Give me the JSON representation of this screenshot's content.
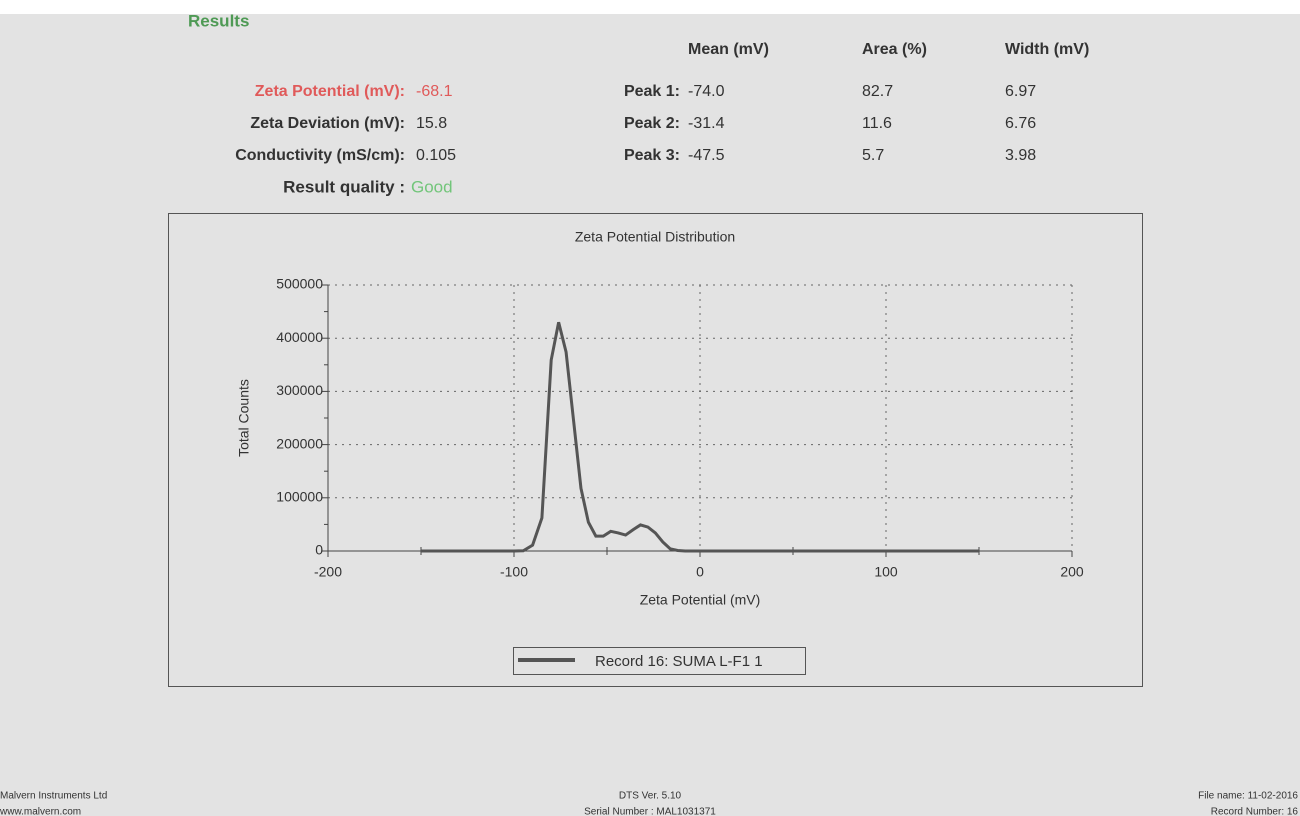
{
  "header": {
    "title": "Results",
    "columns": [
      "Mean (mV)",
      "Area (%)",
      "Width (mV)"
    ]
  },
  "results": [
    {
      "label": "Zeta Potential (mV):",
      "value": "-68.1"
    },
    {
      "label": "Zeta Deviation (mV):",
      "value": "15.8"
    },
    {
      "label": "Conductivity (mS/cm):",
      "value": "0.105"
    }
  ],
  "quality": {
    "label": "Result quality :",
    "value": "Good"
  },
  "peaks": [
    {
      "label": "Peak 1:",
      "mean": "-74.0",
      "area": "82.7",
      "width": "6.97"
    },
    {
      "label": "Peak 2:",
      "mean": "-31.4",
      "area": "11.6",
      "width": "6.76"
    },
    {
      "label": "Peak 3:",
      "mean": "-47.5",
      "area": "5.7",
      "width": "3.98"
    }
  ],
  "chart_data": {
    "type": "line",
    "title": "Zeta Potential Distribution",
    "x_label": "Zeta Potential (mV)",
    "y_label": "Total Counts",
    "x": [
      -150,
      -100,
      -95,
      -90,
      -85,
      -80,
      -76,
      -72,
      -68,
      -64,
      -60,
      -56,
      -52,
      -48,
      -44,
      -40,
      -36,
      -32,
      -28,
      -24,
      -20,
      -16,
      -12,
      -8,
      0,
      150
    ],
    "series": [
      {
        "name": "Record 16: SUMA L-F1 1",
        "color": "#555555",
        "values": [
          0,
          0,
          500,
          11000,
          62000,
          359000,
          430000,
          374000,
          246000,
          118000,
          54000,
          28000,
          28000,
          37000,
          34000,
          30000,
          40000,
          49000,
          45000,
          34000,
          17000,
          4000,
          1000,
          0,
          0,
          0
        ]
      }
    ],
    "xlim": [
      -200,
      200
    ],
    "ylim": [
      0,
      500000
    ],
    "xticks": [
      -200,
      -100,
      0,
      100,
      200
    ],
    "yticks": [
      0,
      100000,
      200000,
      300000,
      400000,
      500000
    ],
    "grid": true
  },
  "footer": {
    "left": [
      "Malvern Instruments Ltd",
      "www.malvern.com"
    ],
    "center": [
      "DTS Ver. 5.10",
      "Serial Number : MAL1031371"
    ],
    "right": [
      "File name: 11-02-2016",
      "Record Number: 16"
    ]
  }
}
